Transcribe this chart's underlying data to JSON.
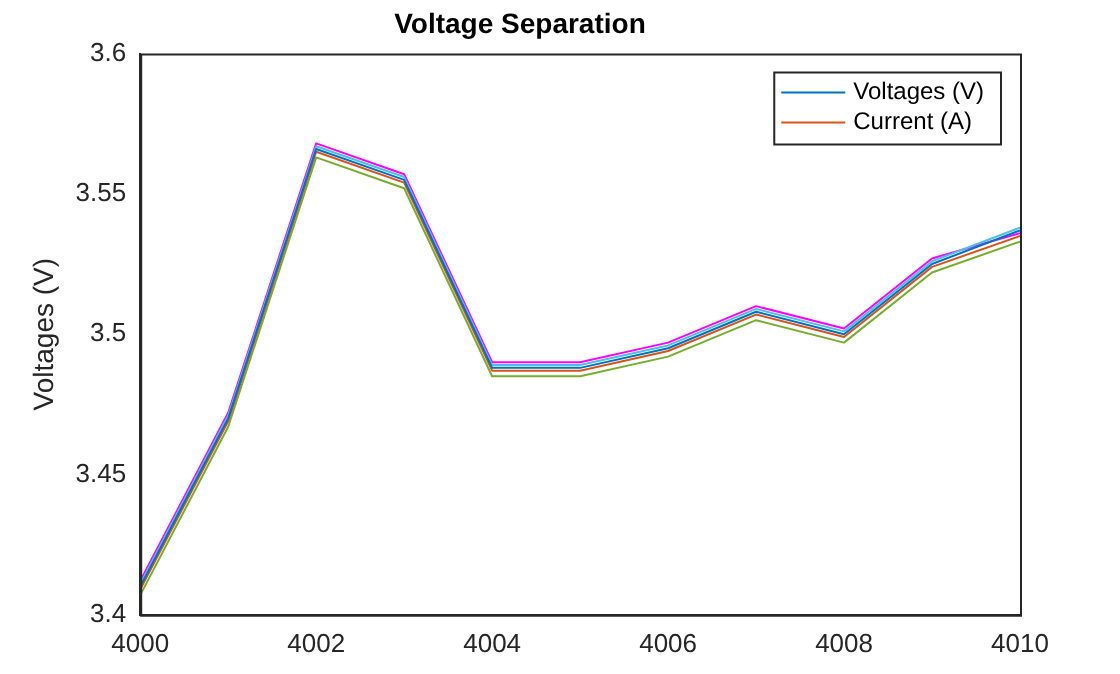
{
  "chart_data": {
    "type": "line",
    "title": "Voltage Separation",
    "ylabel": "Voltages (V)",
    "x": [
      4000,
      4001,
      4002,
      4003,
      4004,
      4005,
      4006,
      4007,
      4008,
      4009,
      4010
    ],
    "series": [
      {
        "name": "Voltages (V)",
        "color": "#0072bd",
        "values": [
          3.41,
          3.47,
          3.566,
          3.555,
          3.488,
          3.488,
          3.495,
          3.508,
          3.5,
          3.525,
          3.537
        ]
      },
      {
        "name": "Current (A)",
        "color": "#d95319",
        "values": [
          3.409,
          3.469,
          3.565,
          3.554,
          3.487,
          3.487,
          3.494,
          3.507,
          3.499,
          3.524,
          3.535
        ]
      },
      {
        "color": "#77ac30",
        "values": [
          3.407,
          3.467,
          3.563,
          3.552,
          3.485,
          3.485,
          3.492,
          3.505,
          3.497,
          3.522,
          3.533
        ]
      },
      {
        "color": "#4dbeee",
        "values": [
          3.411,
          3.471,
          3.567,
          3.556,
          3.489,
          3.489,
          3.496,
          3.509,
          3.501,
          3.526,
          3.538
        ]
      },
      {
        "color": "#ff00ff",
        "values": [
          3.412,
          3.472,
          3.568,
          3.557,
          3.49,
          3.49,
          3.497,
          3.51,
          3.502,
          3.527,
          3.536
        ]
      }
    ],
    "xlim": [
      4000,
      4010
    ],
    "xticks": [
      4000,
      4002,
      4004,
      4006,
      4008,
      4010
    ],
    "ylim": [
      3.4,
      3.6
    ],
    "yticks": [
      3.4,
      3.45,
      3.5,
      3.55,
      3.6
    ],
    "grid": false,
    "legend": "top right",
    "marker": "none",
    "line_style": "solid"
  }
}
